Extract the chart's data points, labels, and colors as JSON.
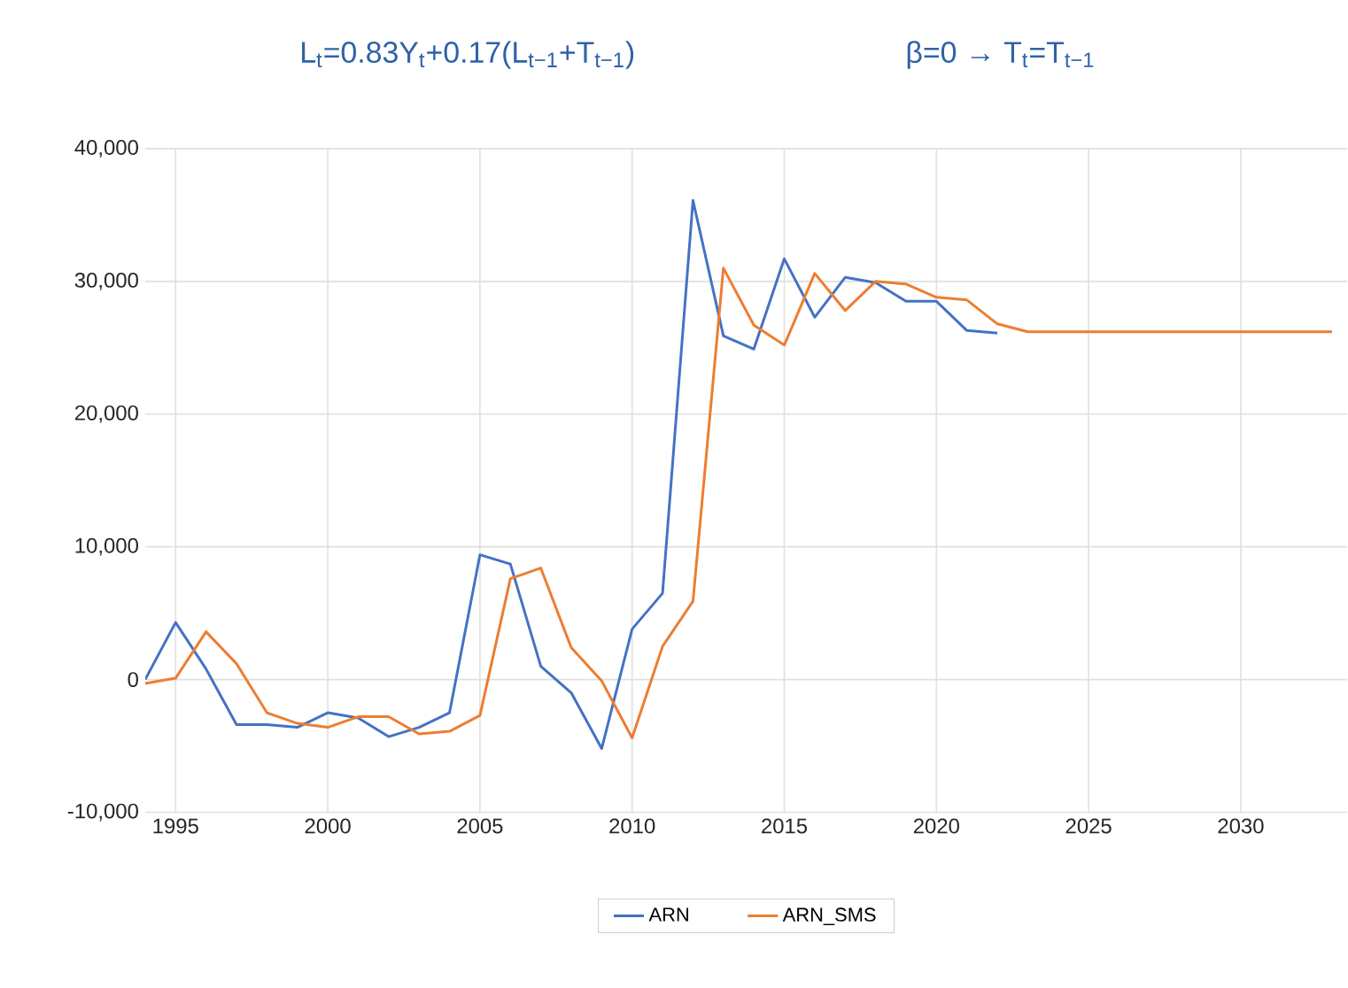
{
  "chart_data": {
    "type": "line",
    "title": "L$_{t}$=0.83Y$_{t}$+0.17(L$_{t−1}$+T$_{t−1}$)",
    "subtitle": "β=0 → T$_{t}$=T$_{t−1}$",
    "xlim": [
      1994,
      2033.5
    ],
    "xticks": [
      1995,
      2000,
      2005,
      2010,
      2015,
      2020,
      2025,
      2030
    ],
    "ylim": [
      -10000,
      40000
    ],
    "yticks": [
      {
        "value": -10000,
        "label": "-10,000"
      },
      {
        "value": 0,
        "label": "0"
      },
      {
        "value": 10000,
        "label": "10,000"
      },
      {
        "value": 20000,
        "label": "20,000"
      },
      {
        "value": 30000,
        "label": "30,000"
      },
      {
        "value": 40000,
        "label": "40,000"
      }
    ],
    "grid": true,
    "legend": "bottom",
    "marker": "none",
    "line_style": "solid",
    "series": [
      {
        "name": "ARN",
        "color": "#4472c4",
        "x": [
          1994,
          1995,
          1996,
          1997,
          1998,
          1999,
          2000,
          2001,
          2002,
          2003,
          2004,
          2005,
          2006,
          2007,
          2008,
          2009,
          2010,
          2011,
          2012,
          2013,
          2014,
          2015,
          2016,
          2017,
          2018,
          2019,
          2020,
          2021,
          2022
        ],
        "values": [
          0,
          4300,
          800,
          -3400,
          -3400,
          -3600,
          -2500,
          -2900,
          -4300,
          -3600,
          -2500,
          9400,
          8700,
          1000,
          -1000,
          -5200,
          3800,
          6500,
          36100,
          25900,
          24900,
          31700,
          27300,
          30300,
          29900,
          28500,
          28500,
          26300,
          26100
        ]
      },
      {
        "name": "ARN_SMS",
        "color": "#ed7d31",
        "x": [
          1994,
          1995,
          1996,
          1997,
          1998,
          1999,
          2000,
          2001,
          2002,
          2003,
          2004,
          2005,
          2006,
          2007,
          2008,
          2009,
          2010,
          2011,
          2012,
          2013,
          2014,
          2015,
          2016,
          2017,
          2018,
          2019,
          2020,
          2021,
          2022,
          2023,
          2024,
          2025,
          2026,
          2027,
          2028,
          2029,
          2030,
          2031,
          2032,
          2033
        ],
        "values": [
          -300,
          100,
          3600,
          1200,
          -2500,
          -3300,
          -3600,
          -2800,
          -2800,
          -4100,
          -3900,
          -2700,
          7600,
          8400,
          2400,
          -100,
          -4400,
          2500,
          5900,
          31000,
          26700,
          25200,
          30600,
          27800,
          30000,
          29800,
          28800,
          28600,
          26800,
          26200,
          26200,
          26200,
          26200,
          26200,
          26200,
          26200,
          26200,
          26200,
          26200,
          26200
        ]
      }
    ]
  }
}
